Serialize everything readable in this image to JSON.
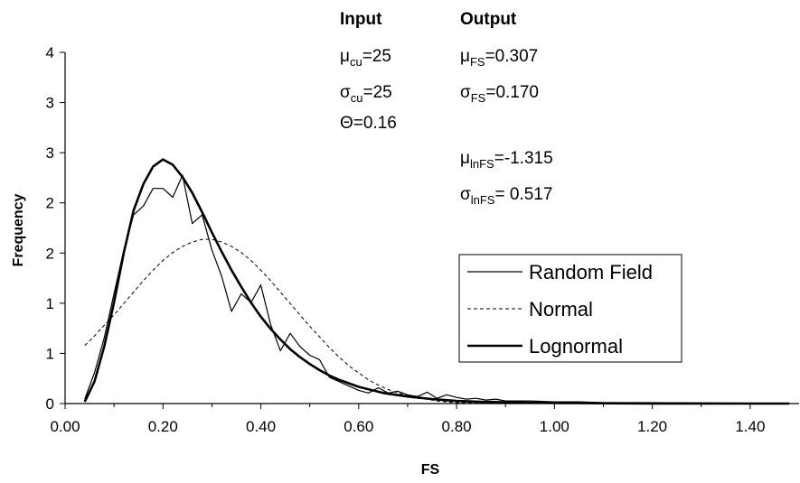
{
  "chart_data": {
    "type": "line",
    "xlabel": "FS",
    "ylabel": "Frequency",
    "xlim": [
      0.0,
      1.5
    ],
    "ylim": [
      0,
      4
    ],
    "x_ticks": [
      "0.00",
      "0.20",
      "0.40",
      "0.60",
      "0.80",
      "1.00",
      "1.20",
      "1.40"
    ],
    "y_ticks": [
      "0",
      "1",
      "1",
      "2",
      "2",
      "3",
      "3",
      "4"
    ],
    "grid": false,
    "legend_position": "right",
    "series": [
      {
        "name": "Random Field",
        "style": "thin-solid",
        "color": "#000000",
        "x": [
          0.04,
          0.06,
          0.08,
          0.1,
          0.12,
          0.14,
          0.16,
          0.18,
          0.2,
          0.22,
          0.24,
          0.26,
          0.28,
          0.3,
          0.32,
          0.34,
          0.36,
          0.38,
          0.4,
          0.42,
          0.44,
          0.46,
          0.48,
          0.5,
          0.52,
          0.54,
          0.56,
          0.58,
          0.6,
          0.62,
          0.64,
          0.66,
          0.68,
          0.7,
          0.72,
          0.74,
          0.76,
          0.78,
          0.8,
          0.82,
          0.84,
          0.86,
          0.88,
          0.9,
          0.95,
          1.0,
          1.05,
          1.1,
          1.2,
          1.3,
          1.4,
          1.48
        ],
        "y": [
          0.05,
          0.35,
          0.75,
          1.25,
          1.75,
          2.15,
          2.25,
          2.45,
          2.45,
          2.35,
          2.6,
          2.05,
          2.15,
          1.75,
          1.45,
          1.05,
          1.25,
          1.15,
          1.35,
          0.9,
          0.6,
          0.8,
          0.65,
          0.55,
          0.5,
          0.3,
          0.25,
          0.2,
          0.15,
          0.12,
          0.18,
          0.12,
          0.14,
          0.1,
          0.08,
          0.13,
          0.06,
          0.1,
          0.07,
          0.05,
          0.06,
          0.04,
          0.05,
          0.03,
          0.03,
          0.02,
          0.02,
          0.01,
          0.01,
          0.005,
          0.003,
          0.002
        ]
      },
      {
        "name": "Normal",
        "style": "dashed",
        "color": "#000000",
        "x": [
          0.04,
          0.06,
          0.08,
          0.1,
          0.12,
          0.14,
          0.16,
          0.18,
          0.2,
          0.22,
          0.24,
          0.26,
          0.28,
          0.3,
          0.32,
          0.34,
          0.36,
          0.38,
          0.4,
          0.42,
          0.44,
          0.46,
          0.48,
          0.5,
          0.52,
          0.54,
          0.56,
          0.58,
          0.6,
          0.62,
          0.64,
          0.66,
          0.68,
          0.7,
          0.72,
          0.74,
          0.76,
          0.78,
          0.8,
          0.82,
          0.84,
          0.86,
          0.88,
          0.9
        ],
        "y": [
          0.66,
          0.77,
          0.89,
          1.01,
          1.14,
          1.27,
          1.4,
          1.52,
          1.63,
          1.72,
          1.79,
          1.84,
          1.87,
          1.87,
          1.84,
          1.79,
          1.72,
          1.63,
          1.52,
          1.4,
          1.27,
          1.14,
          1.01,
          0.88,
          0.76,
          0.64,
          0.53,
          0.43,
          0.35,
          0.27,
          0.21,
          0.16,
          0.12,
          0.09,
          0.06,
          0.05,
          0.03,
          0.02,
          0.01,
          0.01,
          0.006,
          0.004,
          0.002,
          0.001
        ]
      },
      {
        "name": "Lognormal",
        "style": "thick-solid",
        "color": "#000000",
        "x": [
          0.04,
          0.06,
          0.08,
          0.1,
          0.12,
          0.14,
          0.16,
          0.18,
          0.2,
          0.22,
          0.24,
          0.26,
          0.28,
          0.3,
          0.32,
          0.34,
          0.36,
          0.38,
          0.4,
          0.42,
          0.44,
          0.46,
          0.48,
          0.5,
          0.52,
          0.54,
          0.56,
          0.58,
          0.6,
          0.65,
          0.7,
          0.75,
          0.8,
          0.85,
          0.9,
          0.95,
          1.0,
          1.05,
          1.1,
          1.2,
          1.3,
          1.4,
          1.48
        ],
        "y": [
          0.02,
          0.25,
          0.65,
          1.15,
          1.72,
          2.2,
          2.5,
          2.7,
          2.78,
          2.72,
          2.58,
          2.4,
          2.18,
          1.95,
          1.73,
          1.52,
          1.33,
          1.15,
          0.99,
          0.85,
          0.73,
          0.62,
          0.53,
          0.45,
          0.38,
          0.32,
          0.27,
          0.23,
          0.19,
          0.12,
          0.08,
          0.05,
          0.03,
          0.02,
          0.015,
          0.01,
          0.007,
          0.005,
          0.003,
          0.0015,
          0.0007,
          0.0003,
          0.0002
        ]
      }
    ],
    "annotations": {
      "input_head": "Input",
      "output_head": "Output",
      "input": [
        {
          "base": "μ",
          "sub": "cu",
          "rest": "=25"
        },
        {
          "base": "σ",
          "sub": "cu",
          "rest": "=25"
        },
        {
          "base": "Θ",
          "sub": "",
          "rest": "=0.16"
        }
      ],
      "output": [
        {
          "base": "μ",
          "sub": "FS",
          "rest": "=0.307"
        },
        {
          "base": "σ",
          "sub": "FS",
          "rest": "=0.170"
        },
        {
          "base": "μ",
          "sub": "lnFS",
          "rest": "=-1.315"
        },
        {
          "base": "σ",
          "sub": "lnFS",
          "rest": "= 0.517"
        }
      ]
    }
  }
}
